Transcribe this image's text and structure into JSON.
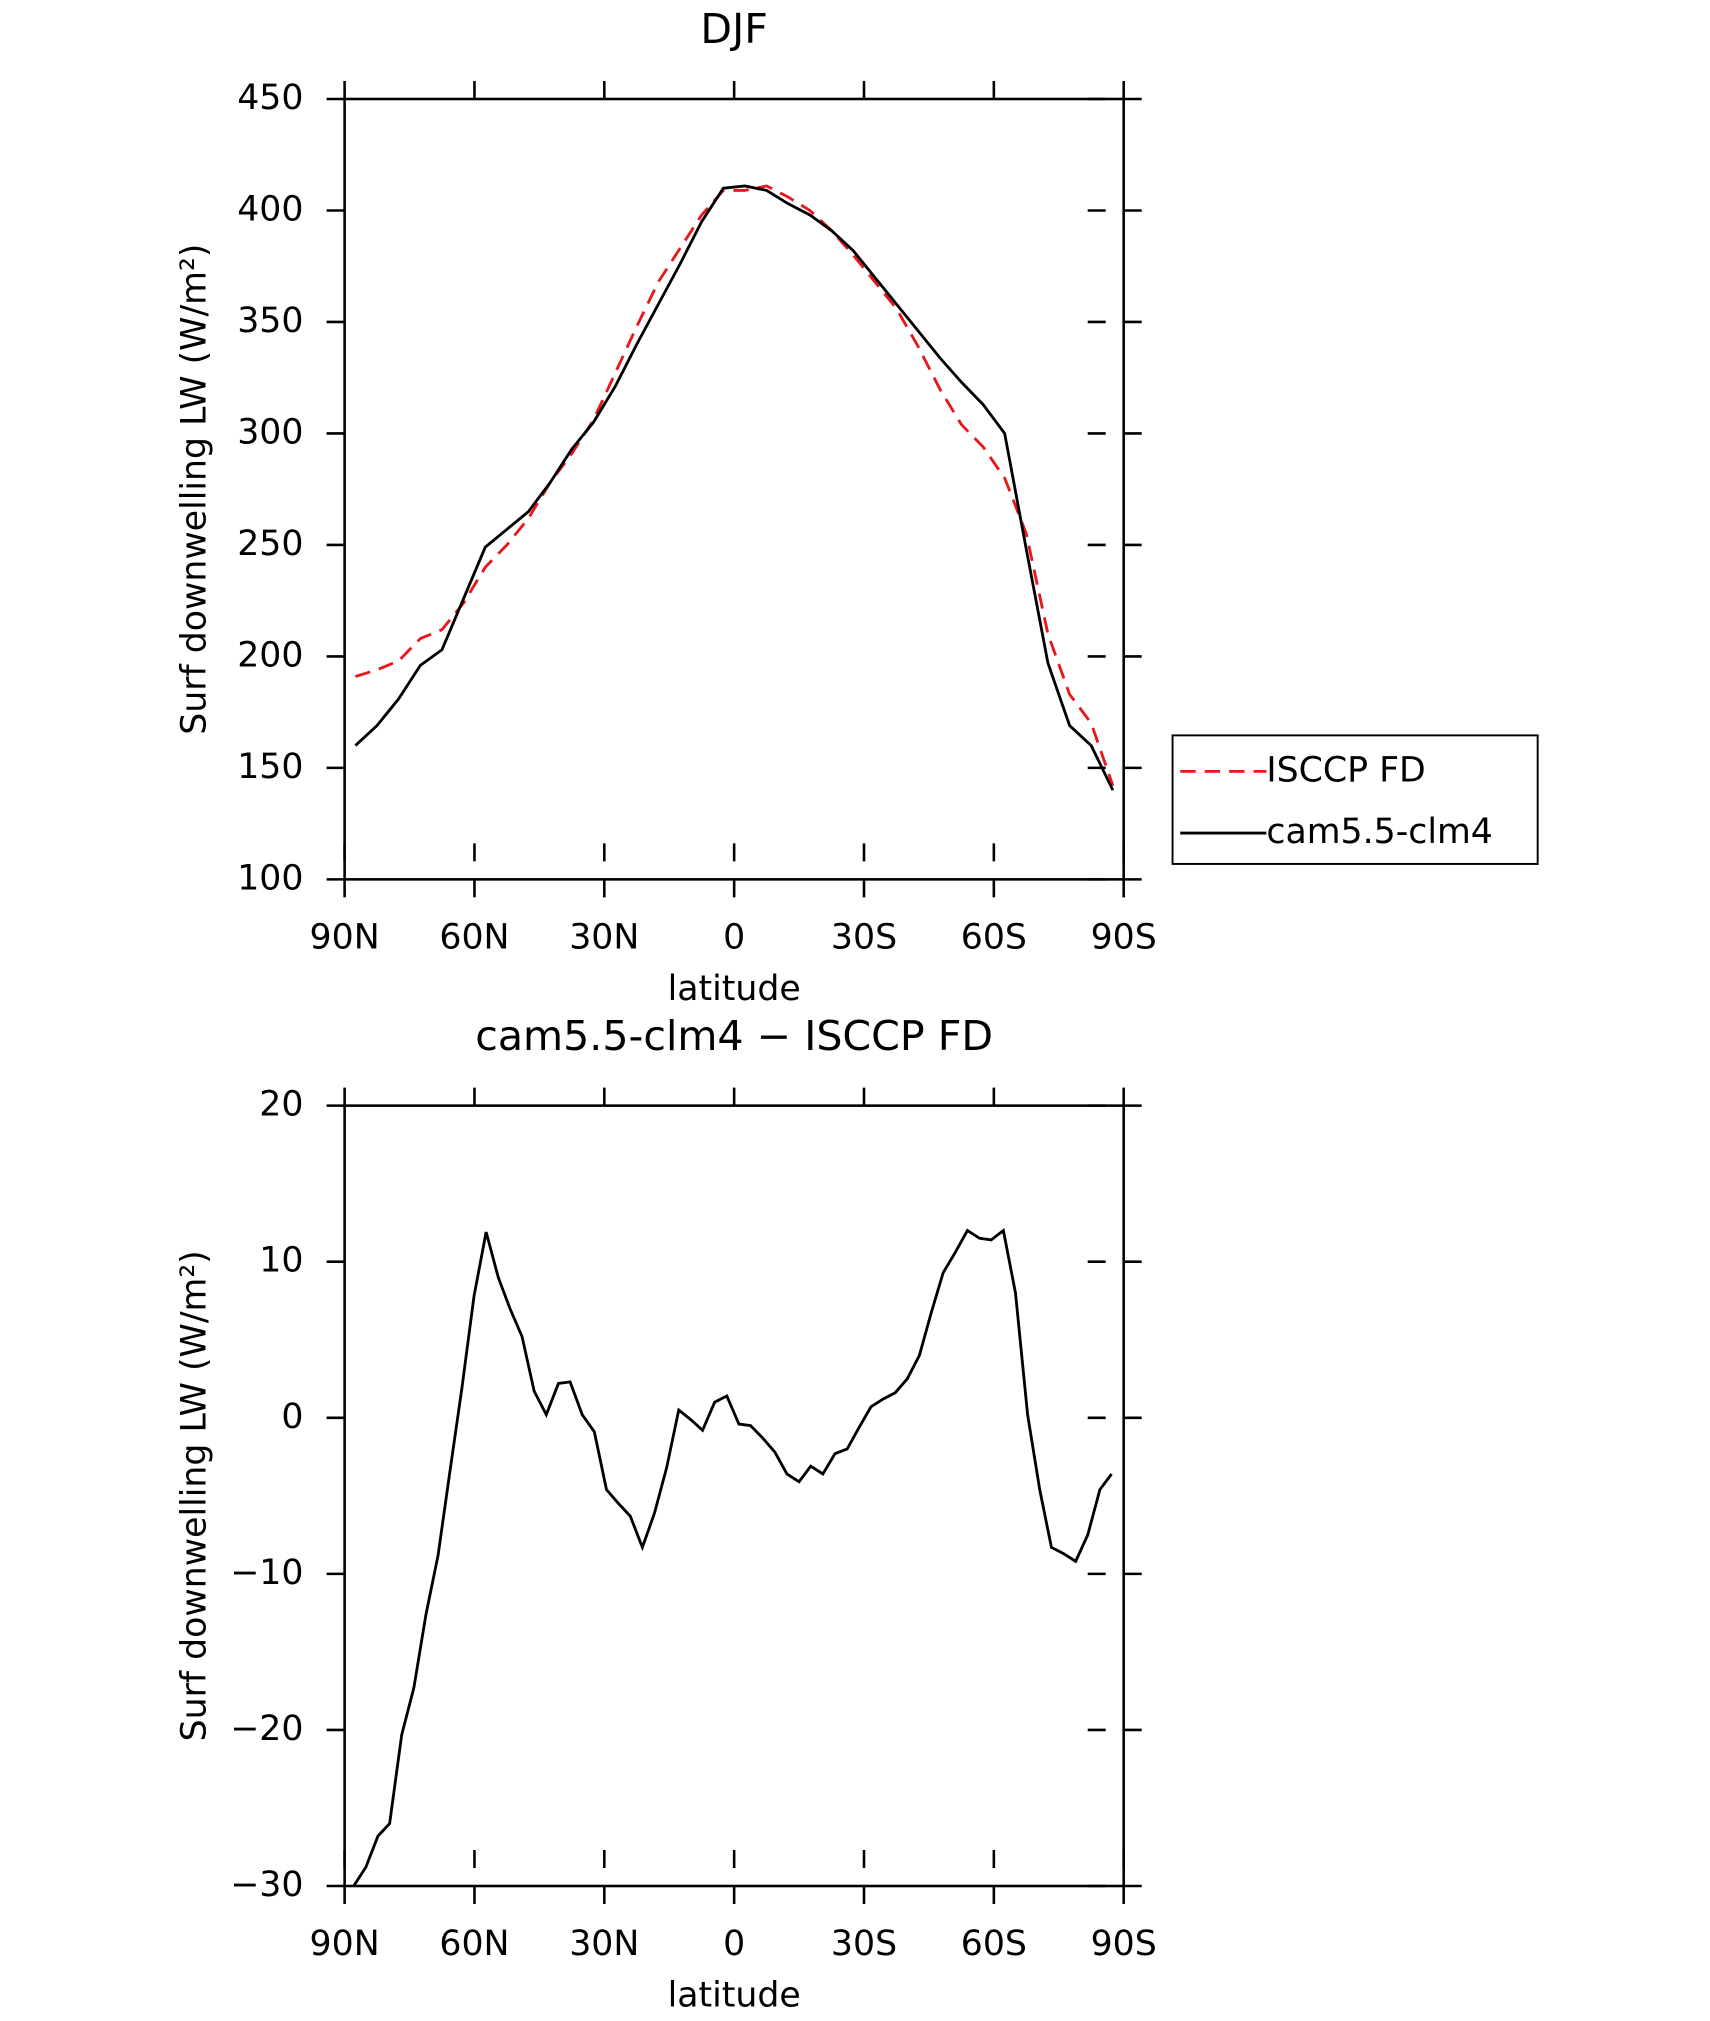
{
  "chart_data": [
    {
      "type": "line",
      "title": "DJF",
      "x_label": "latitude",
      "y_label": "Surf downwelling LW (W/m²)",
      "xlim": [
        90,
        -90
      ],
      "xticks": [
        {
          "value": 90,
          "label": "90N"
        },
        {
          "value": 60,
          "label": "60N"
        },
        {
          "value": 30,
          "label": "30N"
        },
        0,
        {
          "value": -30,
          "label": "30S"
        },
        {
          "value": -60,
          "label": "60S"
        },
        {
          "value": -90,
          "label": "90S"
        }
      ],
      "ylim": [
        100,
        450
      ],
      "yticks": [
        100,
        150,
        200,
        250,
        300,
        350,
        400,
        450
      ],
      "x": [
        87.5,
        82.5,
        77.5,
        72.5,
        67.5,
        62.5,
        57.5,
        52.5,
        47.5,
        42.5,
        37.5,
        32.5,
        27.5,
        22.5,
        17.5,
        12.5,
        7.5,
        2.5,
        -2.5,
        -7.5,
        -12.5,
        -17.5,
        -22.5,
        -27.5,
        -32.5,
        -37.5,
        -42.5,
        -47.5,
        -52.5,
        -57.5,
        -62.5,
        -67.5,
        -72.5,
        -77.5,
        -82.5,
        -87.5
      ],
      "legend": "right",
      "series": [
        {
          "name": "ISCCP FD",
          "color": "#e8171b",
          "dash": true,
          "values": [
            191,
            194,
            198,
            208,
            212,
            224,
            240,
            250,
            262,
            278,
            291,
            306,
            327,
            348,
            368,
            383,
            398,
            409,
            409,
            411,
            406,
            400,
            391,
            380,
            368,
            356,
            339,
            320,
            304,
            294,
            280,
            255,
            210,
            183,
            170,
            142
          ]
        },
        {
          "name": "cam5.5-clm4",
          "color": "#000000",
          "dash": false,
          "values": [
            160,
            169,
            181,
            196,
            203,
            226,
            249,
            257,
            265,
            278,
            293,
            305,
            321,
            340,
            358,
            376,
            395,
            410,
            411,
            409,
            403,
            398,
            391,
            382,
            370,
            358,
            346,
            334,
            323,
            313,
            300,
            248,
            197,
            169,
            160,
            140
          ]
        }
      ]
    },
    {
      "type": "line",
      "title": "cam5.5-clm4 − ISCCP FD",
      "x_label": "latitude",
      "y_label": "Surf downwelling LW (W/m²)",
      "xlim": [
        90,
        -90
      ],
      "xticks": [
        {
          "value": 90,
          "label": "90N"
        },
        {
          "value": 60,
          "label": "60N"
        },
        {
          "value": 30,
          "label": "30N"
        },
        0,
        {
          "value": -30,
          "label": "30S"
        },
        {
          "value": -60,
          "label": "60S"
        },
        {
          "value": -90,
          "label": "90S"
        }
      ],
      "ylim": [
        -30,
        20
      ],
      "yticks": [
        {
          "value": -30,
          "label": "−30"
        },
        {
          "value": -20,
          "label": "−20"
        },
        {
          "value": -10,
          "label": "−10"
        },
        0,
        10,
        20
      ],
      "x": [
        87.9,
        85.1,
        82.3,
        79.6,
        76.8,
        74.0,
        71.2,
        68.4,
        65.7,
        62.9,
        60.1,
        57.3,
        54.5,
        51.8,
        49.0,
        46.2,
        43.4,
        40.6,
        37.9,
        35.1,
        32.3,
        29.5,
        26.7,
        24.0,
        21.2,
        18.4,
        15.6,
        12.8,
        10.1,
        7.3,
        4.5,
        1.7,
        -1.1,
        -3.8,
        -6.6,
        -9.4,
        -12.2,
        -15.0,
        -17.7,
        -20.5,
        -23.3,
        -26.1,
        -28.9,
        -31.6,
        -34.4,
        -37.2,
        -40.0,
        -42.8,
        -45.5,
        -48.3,
        -51.1,
        -53.9,
        -56.7,
        -59.4,
        -62.2,
        -65.0,
        -67.8,
        -70.6,
        -73.3,
        -76.1,
        -78.9,
        -81.7,
        -84.5,
        -87.2
      ],
      "series": [
        {
          "color": "#000000",
          "dash": false,
          "values": [
            -30,
            -28.8,
            -26.8,
            -26,
            -20.3,
            -17.3,
            -12.6,
            -8.8,
            -3.5,
            1.9,
            7.8,
            11.9,
            9,
            7,
            5.2,
            1.7,
            0.2,
            2.2,
            2.3,
            0.2,
            -0.9,
            -4.6,
            -5.5,
            -6.3,
            -8.3,
            -6.1,
            -3.2,
            0.5,
            -0.1,
            -0.8,
            1.0,
            1.4,
            -0.4,
            -0.5,
            -1.3,
            -2.2,
            -3.6,
            -4.1,
            -3.1,
            -3.6,
            -2.3,
            -2.0,
            -0.6,
            0.7,
            1.2,
            1.6,
            2.5,
            4.0,
            6.7,
            9.3,
            10.6,
            12.0,
            11.5,
            11.4,
            12.0,
            8.0,
            0.2,
            -4.6,
            -8.3,
            -8.7,
            -9.2,
            -7.5,
            -4.6,
            -3.6
          ]
        }
      ]
    }
  ]
}
